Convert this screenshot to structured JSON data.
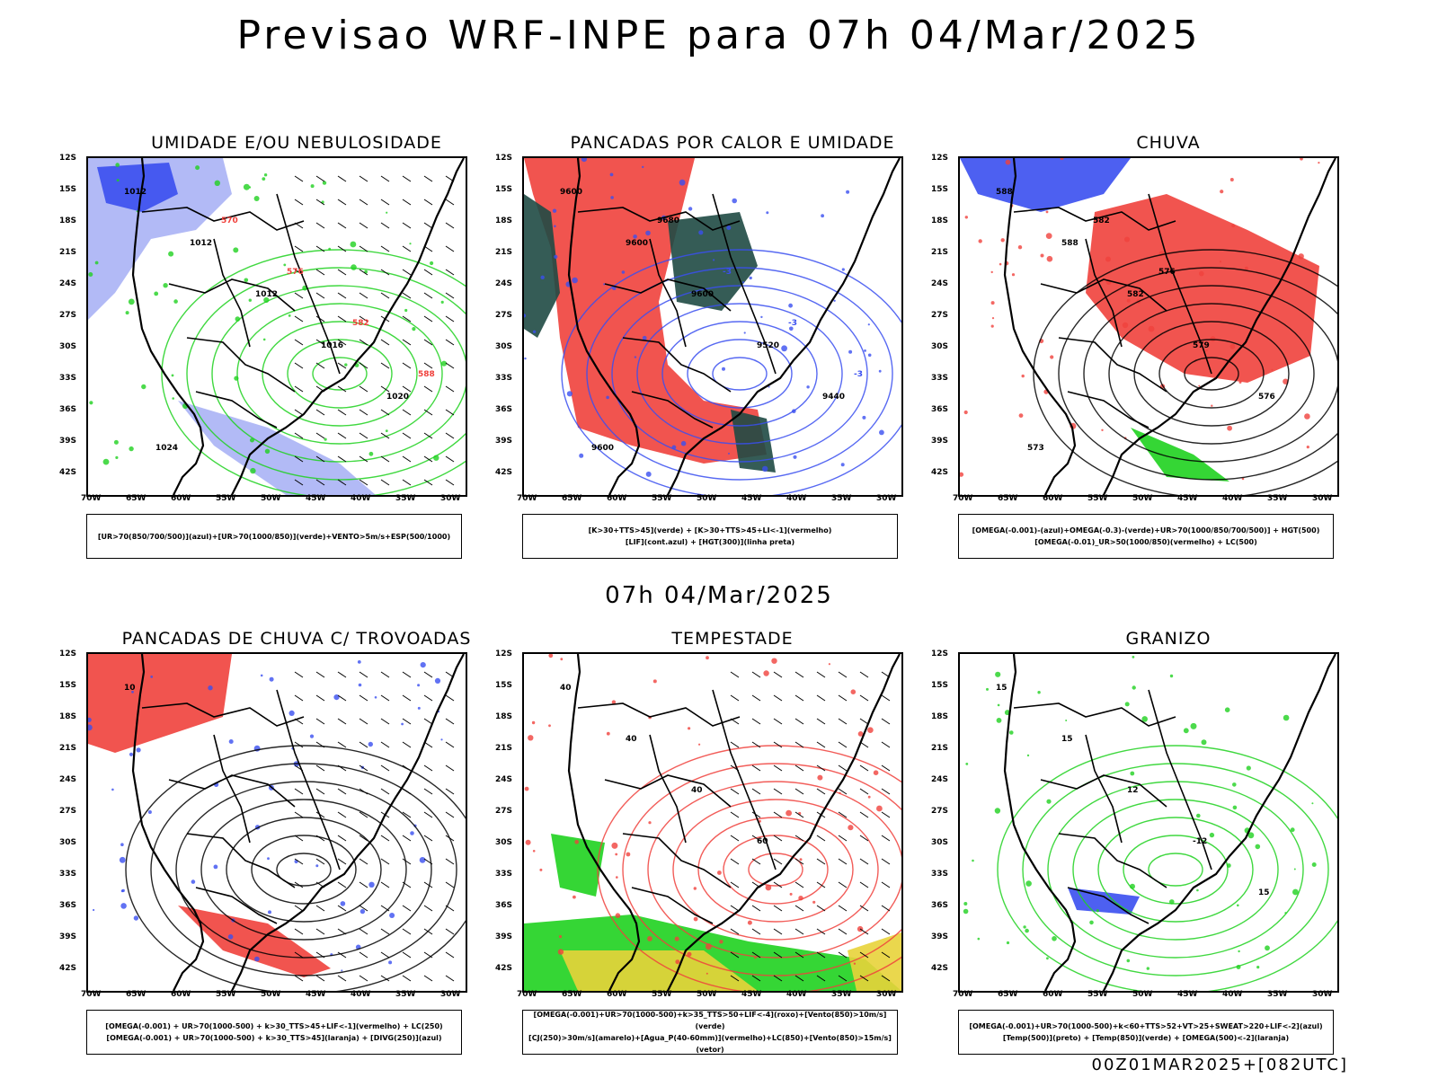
{
  "title": "Previsao WRF-INPE  para 07h 04/Mar/2025",
  "middle_title": "07h 04/Mar/2025",
  "footer": "00Z01MAR2025+[082UTC]",
  "lat_labels": [
    "12S",
    "15S",
    "18S",
    "21S",
    "24S",
    "27S",
    "30S",
    "33S",
    "36S",
    "39S",
    "42S"
  ],
  "lon_labels": [
    "70W",
    "65W",
    "60W",
    "55W",
    "50W",
    "45W",
    "40W",
    "35W",
    "30W"
  ],
  "panels": [
    {
      "title": "UMIDADE E/OU NEBULOSIDADE",
      "legend": [
        "[UR>70(850/700/500)](azul)+[UR>70(1000/850)](verde)+VENTO>5m/s+ESP(500/1000)"
      ],
      "map_labels": [
        "1012",
        "1012",
        "1012",
        "1016",
        "1020",
        "1024",
        "570",
        "576",
        "582",
        "588"
      ]
    },
    {
      "title": "PANCADAS POR CALOR E UMIDADE",
      "legend": [
        "[K>30+TTS>45](verde) + [K>30+TTS>45+LI<-1](vermelho)",
        "[LIF](cont.azul) + [HGT(300)](linha preta)"
      ],
      "map_labels": [
        "9600",
        "9600",
        "9600",
        "9520",
        "9440",
        "9600",
        "9680",
        "-3",
        "-3",
        "-3"
      ]
    },
    {
      "title": "CHUVA",
      "legend": [
        "[OMEGA(-0.001)-(azul)+OMEGA(-0.3)-(verde)+UR>70(1000/850/700/500)] + HGT(500)",
        "[OMEGA(-0.01)_UR>50(1000/850)(vermelho) + LC(500)"
      ],
      "map_labels": [
        "588",
        "588",
        "582",
        "579",
        "576",
        "573",
        "582",
        "576"
      ]
    },
    {
      "title": "PANCADAS DE CHUVA C/ TROVOADAS",
      "legend": [
        "[OMEGA(-0.001) + UR>70(1000-500) + k>30_TTS>45+LIF<-1](vermelho) + LC(250)",
        "[OMEGA(-0.001) + UR>70(1000-500) + k>30_TTS>45](laranja) + [DIVG(250)](azul)"
      ],
      "map_labels": [
        "10"
      ]
    },
    {
      "title": "TEMPESTADE",
      "legend": [
        "[OMEGA(-0.001)+UR>70(1000-500)+k>35_TTS>50+LIF<-4](roxo)+[Vento(850)>10m/s](verde)",
        "[CJ(250)>30m/s](amarelo)+[Agua_P(40-60mm)](vermelho)+LC(850)+[Vento(850)>15m/s](vetor)"
      ],
      "map_labels": [
        "40",
        "40",
        "40",
        "60"
      ]
    },
    {
      "title": "GRANIZO",
      "legend": [
        "[OMEGA(-0.001)+UR>70(1000-500)+k<60+TTS>52+VT>25+SWEAT>220+LIF<-2](azul)",
        "[Temp(500)](preto) + [Temp(850)](verde) + [OMEGA(500)<-2](laranja)"
      ],
      "map_labels": [
        "15",
        "15",
        "12",
        "-12",
        "15"
      ]
    }
  ],
  "colors": {
    "blue": "#3a4ff0",
    "green": "#1fd11f",
    "red": "#f0413c",
    "teal": "#1f4a44",
    "yellow": "#e8d33a",
    "purple": "#9a2bd0",
    "orange": "#e88a1a",
    "lavender": "#aab2f5"
  }
}
